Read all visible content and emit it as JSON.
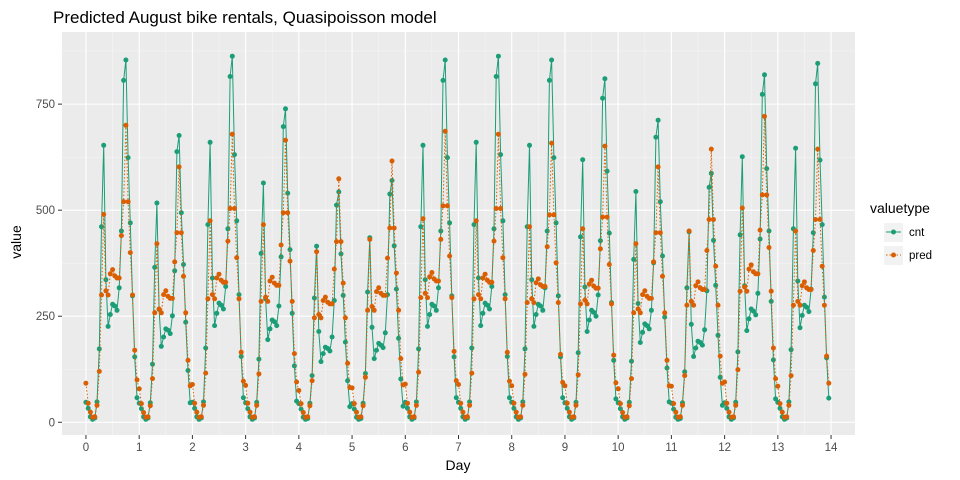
{
  "chart_data": {
    "type": "line",
    "title": "Predicted August bike rentals, Quasipoisson model",
    "xlabel": "Day",
    "ylabel": "value",
    "xlim": [
      -0.45,
      14.45
    ],
    "ylim": [
      -30,
      920
    ],
    "xticks": [
      0,
      1,
      2,
      3,
      4,
      5,
      6,
      7,
      8,
      9,
      10,
      11,
      12,
      13,
      14
    ],
    "yticks": [
      0,
      250,
      500,
      750
    ],
    "grid": true,
    "legend": {
      "title": "valuetype",
      "position": "right"
    },
    "colors": {
      "cnt": "#1b9e77",
      "pred": "#d95f02",
      "panel": "#ebebeb",
      "grid_major": "#ffffff",
      "grid_minor": "#f5f5f5"
    },
    "series": [
      {
        "name": "cnt",
        "line": "solid",
        "profile": [
          [
            0,
            47
          ],
          [
            1,
            33
          ],
          [
            2,
            13
          ],
          [
            3,
            7
          ],
          [
            4,
            10
          ],
          [
            5,
            48
          ],
          [
            6,
            180
          ],
          [
            7,
            480
          ],
          [
            8,
            680
          ],
          [
            9,
            350
          ],
          [
            10,
            235
          ],
          [
            11,
            265
          ],
          [
            12,
            290
          ],
          [
            13,
            285
          ],
          [
            14,
            275
          ],
          [
            15,
            330
          ],
          [
            16,
            470
          ],
          [
            17,
            840
          ],
          [
            18,
            890
          ],
          [
            19,
            650
          ],
          [
            20,
            490
          ],
          [
            21,
            310
          ],
          [
            22,
            160
          ],
          [
            23,
            60
          ]
        ],
        "day_scale": [
          0.96,
          0.76,
          0.97,
          0.83,
          0.61,
          0.64,
          0.96,
          0.97,
          0.96,
          0.91,
          0.8,
          0.66,
          0.92,
          0.95
        ]
      },
      {
        "name": "pred",
        "line": "dotted",
        "profile": [
          [
            0,
            92
          ],
          [
            1,
            45
          ],
          [
            2,
            24
          ],
          [
            3,
            12
          ],
          [
            4,
            13
          ],
          [
            5,
            40
          ],
          [
            6,
            120
          ],
          [
            7,
            300
          ],
          [
            8,
            490
          ],
          [
            9,
            310
          ],
          [
            10,
            300
          ],
          [
            11,
            350
          ],
          [
            12,
            360
          ],
          [
            13,
            345
          ],
          [
            14,
            340
          ],
          [
            15,
            340
          ],
          [
            16,
            440
          ],
          [
            17,
            520
          ],
          [
            18,
            700
          ],
          [
            19,
            520
          ],
          [
            20,
            400
          ],
          [
            21,
            300
          ],
          [
            22,
            170
          ],
          [
            23,
            100
          ]
        ],
        "day_scale": [
          1.0,
          0.86,
          0.97,
          0.95,
          0.82,
          0.88,
          0.98,
          0.97,
          0.94,
          0.93,
          0.86,
          0.92,
          1.03,
          0.92
        ]
      }
    ]
  }
}
